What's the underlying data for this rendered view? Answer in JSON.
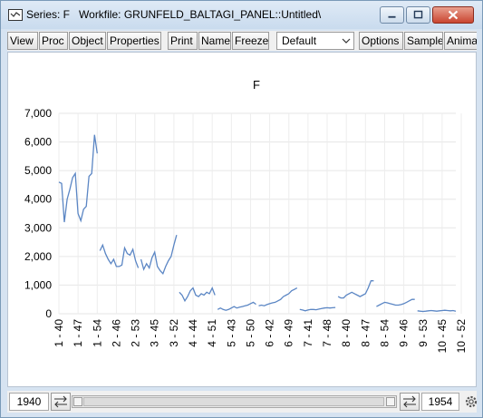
{
  "window": {
    "title_series": "Series: F",
    "title_workfile": "Workfile: GRUNFELD_BALTAGI_PANEL::Untitled\\"
  },
  "toolbar": {
    "buttons": [
      "View",
      "Proc",
      "Object",
      "Properties",
      "Print",
      "Name",
      "Freeze",
      "Options",
      "Sample",
      "Anima"
    ],
    "select_value": "Default"
  },
  "statusbar": {
    "start": "1940",
    "end": "1954"
  },
  "colors": {
    "line": "#5b86c4",
    "accent_close": "#c94530"
  },
  "chart_data": {
    "type": "line",
    "title": "F",
    "ylim": [
      0,
      7000
    ],
    "y_ticks": [
      "0",
      "1,000",
      "2,000",
      "3,000",
      "4,000",
      "5,000",
      "6,000",
      "7,000"
    ],
    "x_ticks": [
      "1 - 40",
      "1 - 47",
      "1 - 54",
      "2 - 46",
      "2 - 53",
      "3 - 45",
      "3 - 52",
      "4 - 44",
      "4 - 51",
      "5 - 43",
      "5 - 50",
      "6 - 42",
      "6 - 49",
      "7 - 41",
      "7 - 48",
      "8 - 40",
      "8 - 47",
      "8 - 54",
      "9 - 46",
      "9 - 53",
      "10 - 45",
      "10 - 52"
    ],
    "grid": true,
    "series": [
      {
        "values": [
          [
            4600,
            4550,
            3200,
            4000,
            4350,
            4750,
            4900,
            3500,
            3250,
            3650,
            3750,
            4800,
            4900,
            6250,
            5600
          ],
          [
            2200,
            2400,
            2100,
            1900,
            1750,
            1900,
            1650,
            1650,
            1700,
            2300,
            2100,
            2050,
            2250,
            1850,
            1600
          ],
          [
            1900,
            1550,
            1750,
            1600,
            1950,
            2150,
            1650,
            1500,
            1400,
            1650,
            1850,
            2000,
            2400,
            2750
          ],
          [
            750,
            650,
            450,
            600,
            800,
            900,
            650,
            600,
            700,
            650,
            750,
            700,
            900,
            650
          ],
          [
            150,
            200,
            150,
            120,
            150,
            200,
            250,
            200,
            230,
            250,
            280,
            300,
            350,
            400,
            330
          ],
          [
            280,
            300,
            280,
            320,
            350,
            380,
            400,
            450,
            500,
            600,
            650,
            700,
            800,
            850,
            900
          ],
          [
            150,
            130,
            100,
            130,
            150,
            150,
            140,
            160,
            180,
            200,
            210,
            200,
            210,
            220
          ],
          [
            600,
            550,
            550,
            650,
            700,
            750,
            700,
            650,
            600,
            650,
            700,
            900,
            1150,
            1150
          ],
          [
            250,
            300,
            350,
            400,
            380,
            350,
            330,
            300,
            300,
            320,
            350,
            400,
            450,
            500,
            500
          ],
          [
            100,
            90,
            80,
            90,
            100,
            110,
            100,
            90,
            100,
            110,
            120,
            110,
            100,
            110,
            90
          ]
        ]
      }
    ]
  }
}
